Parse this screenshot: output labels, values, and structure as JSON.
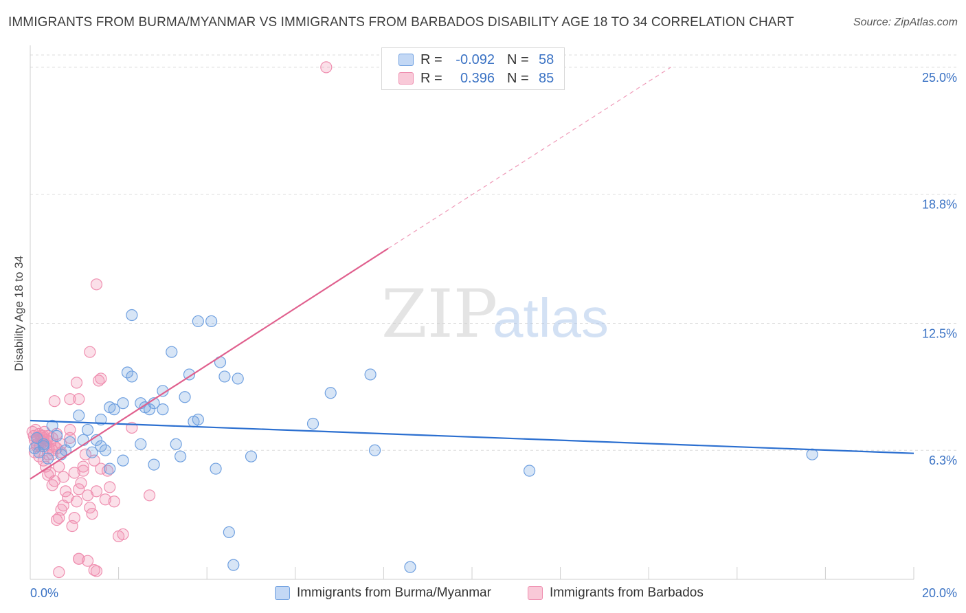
{
  "header": {
    "title": "IMMIGRANTS FROM BURMA/MYANMAR VS IMMIGRANTS FROM BARBADOS DISABILITY AGE 18 TO 34 CORRELATION CHART",
    "source": "Source: ZipAtlas.com"
  },
  "watermark": {
    "zip": "ZIP",
    "atlas": "atlas"
  },
  "legend": {
    "rows": [
      {
        "r_label": "R =",
        "r_value": "-0.092",
        "n_label": "N =",
        "n_value": "58",
        "color": "#6fa0e0"
      },
      {
        "r_label": "R =",
        "r_value": "0.396",
        "n_label": "N =",
        "n_value": "85",
        "color": "#ef8fb0"
      }
    ]
  },
  "bottom_legend": {
    "series_a": "Immigrants from Burma/Myanmar",
    "series_b": "Immigrants from Barbados"
  },
  "chart_data": {
    "type": "scatter",
    "ylabel": "Disability Age 18 to 34",
    "xlim": [
      0,
      20
    ],
    "ylim": [
      0,
      25.6
    ],
    "x_tick_labels": {
      "left": "0.0%",
      "right": "20.0%"
    },
    "y_ticks": [
      {
        "value": 6.3,
        "label": "6.3%"
      },
      {
        "value": 12.5,
        "label": "12.5%"
      },
      {
        "value": 18.8,
        "label": "18.8%"
      },
      {
        "value": 25.0,
        "label": "25.0%"
      }
    ],
    "colors": {
      "burma": "#6fa0e0",
      "burma_line": "#2b6fd0",
      "barbados": "#ef8fb0",
      "barbados_line": "#e0608e",
      "axis_text": "#3a72c4"
    },
    "series": [
      {
        "name": "Immigrants from Burma/Myanmar",
        "trend": {
          "x": [
            0,
            20
          ],
          "y": [
            7.75,
            6.15
          ],
          "style": "solid"
        },
        "points": [
          [
            0.1,
            6.4
          ],
          [
            0.2,
            6.2
          ],
          [
            0.3,
            6.6
          ],
          [
            0.4,
            5.9
          ],
          [
            0.5,
            7.5
          ],
          [
            0.6,
            7.0
          ],
          [
            0.7,
            6.1
          ],
          [
            0.8,
            6.3
          ],
          [
            1.1,
            8.0
          ],
          [
            1.2,
            6.8
          ],
          [
            1.3,
            7.3
          ],
          [
            1.4,
            6.2
          ],
          [
            1.5,
            6.8
          ],
          [
            1.6,
            6.5
          ],
          [
            1.6,
            7.8
          ],
          [
            1.8,
            8.4
          ],
          [
            1.7,
            6.3
          ],
          [
            1.8,
            5.4
          ],
          [
            1.9,
            8.3
          ],
          [
            2.1,
            8.6
          ],
          [
            2.1,
            5.8
          ],
          [
            2.2,
            10.1
          ],
          [
            2.3,
            9.9
          ],
          [
            2.3,
            12.9
          ],
          [
            2.5,
            8.6
          ],
          [
            2.5,
            6.6
          ],
          [
            2.6,
            8.4
          ],
          [
            2.7,
            8.3
          ],
          [
            2.8,
            8.6
          ],
          [
            2.8,
            5.6
          ],
          [
            3.0,
            9.2
          ],
          [
            3.0,
            8.3
          ],
          [
            3.2,
            11.1
          ],
          [
            3.3,
            6.6
          ],
          [
            3.4,
            6.0
          ],
          [
            3.5,
            8.9
          ],
          [
            3.6,
            10.0
          ],
          [
            3.7,
            7.7
          ],
          [
            3.8,
            7.8
          ],
          [
            3.8,
            12.6
          ],
          [
            4.1,
            12.6
          ],
          [
            4.2,
            5.4
          ],
          [
            4.3,
            10.6
          ],
          [
            4.4,
            9.9
          ],
          [
            4.6,
            0.7
          ],
          [
            5.0,
            6.0
          ],
          [
            4.5,
            2.3
          ],
          [
            4.7,
            9.8
          ],
          [
            6.4,
            7.6
          ],
          [
            6.8,
            9.1
          ],
          [
            7.8,
            6.3
          ],
          [
            7.7,
            10.0
          ],
          [
            8.6,
            0.6
          ],
          [
            11.3,
            5.3
          ],
          [
            17.7,
            6.1
          ],
          [
            0.3,
            6.5
          ],
          [
            0.15,
            6.9
          ],
          [
            0.9,
            6.7
          ]
        ]
      },
      {
        "name": "Immigrants from Barbados",
        "trend": {
          "x": [
            0,
            8.1
          ],
          "y": [
            4.9,
            16.15
          ],
          "style": "solid",
          "extension": {
            "x": [
              8.1,
              14.5
            ],
            "y": [
              16.15,
              25.0
            ],
            "style": "dashed"
          }
        },
        "points": [
          [
            0.05,
            7.2
          ],
          [
            0.08,
            7.0
          ],
          [
            0.1,
            6.8
          ],
          [
            0.12,
            7.3
          ],
          [
            0.15,
            6.6
          ],
          [
            0.18,
            6.9
          ],
          [
            0.2,
            7.1
          ],
          [
            0.22,
            6.5
          ],
          [
            0.25,
            7.0
          ],
          [
            0.28,
            6.7
          ],
          [
            0.3,
            6.9
          ],
          [
            0.32,
            7.2
          ],
          [
            0.35,
            6.6
          ],
          [
            0.38,
            6.8
          ],
          [
            0.4,
            7.0
          ],
          [
            0.42,
            6.4
          ],
          [
            0.45,
            6.7
          ],
          [
            0.5,
            6.9
          ],
          [
            0.55,
            6.5
          ],
          [
            0.6,
            7.1
          ],
          [
            0.1,
            6.2
          ],
          [
            0.2,
            6.0
          ],
          [
            0.3,
            5.8
          ],
          [
            0.4,
            6.1
          ],
          [
            0.5,
            6.3
          ],
          [
            0.35,
            5.5
          ],
          [
            0.45,
            5.2
          ],
          [
            0.55,
            4.8
          ],
          [
            0.5,
            4.6
          ],
          [
            0.65,
            5.5
          ],
          [
            0.7,
            6.2
          ],
          [
            0.75,
            5.0
          ],
          [
            0.8,
            4.3
          ],
          [
            0.85,
            4.0
          ],
          [
            0.9,
            6.9
          ],
          [
            1.0,
            5.2
          ],
          [
            1.0,
            3.0
          ],
          [
            1.05,
            3.8
          ],
          [
            1.1,
            4.4
          ],
          [
            1.15,
            4.7
          ],
          [
            1.2,
            5.5
          ],
          [
            1.25,
            6.1
          ],
          [
            1.3,
            4.1
          ],
          [
            1.4,
            3.2
          ],
          [
            1.45,
            5.8
          ],
          [
            1.5,
            4.3
          ],
          [
            1.6,
            5.4
          ],
          [
            1.7,
            3.9
          ],
          [
            1.75,
            5.3
          ],
          [
            1.8,
            4.5
          ],
          [
            1.9,
            3.8
          ],
          [
            2.0,
            2.1
          ],
          [
            2.1,
            2.2
          ],
          [
            2.3,
            7.4
          ],
          [
            2.7,
            4.1
          ],
          [
            1.1,
            1.0
          ],
          [
            1.3,
            0.9
          ],
          [
            0.7,
            3.4
          ],
          [
            0.75,
            3.6
          ],
          [
            0.6,
            2.9
          ],
          [
            0.65,
            3.0
          ],
          [
            0.95,
            2.6
          ],
          [
            1.35,
            3.5
          ],
          [
            0.55,
            8.7
          ],
          [
            0.9,
            8.8
          ],
          [
            1.05,
            9.6
          ],
          [
            1.1,
            8.8
          ],
          [
            1.35,
            11.1
          ],
          [
            1.55,
            9.7
          ],
          [
            1.6,
            9.8
          ],
          [
            1.5,
            14.4
          ],
          [
            1.5,
            0.4
          ],
          [
            1.1,
            1.0
          ],
          [
            1.45,
            0.45
          ],
          [
            0.65,
            0.35
          ],
          [
            0.9,
            7.3
          ],
          [
            0.5,
            6.1
          ],
          [
            0.4,
            5.1
          ],
          [
            0.6,
            6.4
          ],
          [
            0.7,
            6.6
          ],
          [
            0.25,
            6.8
          ],
          [
            0.15,
            6.5
          ],
          [
            0.3,
            7.0
          ],
          [
            1.2,
            5.3
          ],
          [
            6.7,
            25.0
          ]
        ]
      }
    ]
  }
}
